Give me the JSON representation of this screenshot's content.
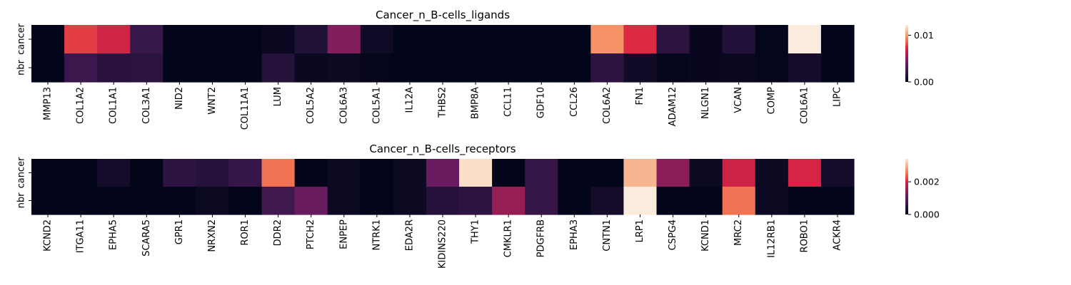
{
  "chart_data": [
    {
      "type": "heatmap",
      "title": "Cancer_n_B-cells_ligands",
      "rows": [
        "cancer",
        "nbr"
      ],
      "columns": [
        "MMP13",
        "COL1A2",
        "COL1A1",
        "COL3A1",
        "NID2",
        "WNT2",
        "COL11A1",
        "LUM",
        "COL5A2",
        "COL6A3",
        "COL5A1",
        "IL12A",
        "THBS2",
        "BMP8A",
        "CCL11",
        "GDF10",
        "CCL26",
        "COL6A2",
        "FN1",
        "ADAM12",
        "NLGN1",
        "VCAN",
        "COMP",
        "COL6A1",
        "LIPC"
      ],
      "values": [
        [
          0.0,
          0.0078,
          0.007,
          0.0022,
          0.0,
          0.0,
          0.0,
          0.0003,
          0.0012,
          0.0048,
          0.0005,
          0.0,
          0.0,
          0.0,
          0.0,
          0.0,
          0.0,
          0.0098,
          0.0074,
          0.0017,
          0.0002,
          0.0013,
          0.0001,
          0.0122,
          0.0
        ],
        [
          0.0,
          0.0023,
          0.0016,
          0.0017,
          0.0,
          0.0,
          0.0,
          0.0014,
          0.0003,
          0.0004,
          0.0001,
          0.0,
          0.0,
          0.0,
          0.0,
          0.0,
          0.0,
          0.0018,
          0.0006,
          0.0001,
          0.0002,
          0.0003,
          0.0001,
          0.0007,
          0.0
        ]
      ],
      "colorbar": {
        "min": 0.0,
        "max": 0.0122,
        "ticks": [
          0.0,
          0.01
        ],
        "tick_labels": [
          "0.00",
          "0.01"
        ]
      },
      "colormap": "rocket"
    },
    {
      "type": "heatmap",
      "title": "Cancer_n_B-cells_receptors",
      "rows": [
        "cancer",
        "nbr"
      ],
      "columns": [
        "KCND2",
        "ITGA11",
        "EPHA5",
        "SCARA5",
        "GPR1",
        "NRXN2",
        "ROR1",
        "DDR2",
        "PTCH2",
        "ENPEP",
        "NTRK1",
        "EDA2R",
        "KIDINS220",
        "THY1",
        "CMKLR1",
        "PDGFRB",
        "EPHA3",
        "CNTN1",
        "LRP1",
        "CSPG4",
        "KCND1",
        "MRC2",
        "IL12RB1",
        "ROBO1",
        "ACKR4"
      ],
      "values": [
        [
          0.0,
          0.0,
          0.0002,
          0.0,
          0.0005,
          0.0004,
          0.0006,
          0.0025,
          0.0,
          0.0001,
          0.0,
          0.0001,
          0.0011,
          0.0033,
          0.0,
          0.0006,
          0.0,
          0.0,
          0.003,
          0.0014,
          0.0001,
          0.0019,
          0.0001,
          0.002,
          0.0002
        ],
        [
          0.0,
          0.0,
          0.0,
          0.0,
          0.0,
          0.0001,
          0.0,
          0.0007,
          0.0011,
          0.0001,
          0.0,
          0.0001,
          0.0004,
          0.0005,
          0.0015,
          0.0006,
          0.0,
          0.0002,
          0.0034,
          0.0,
          0.0,
          0.0025,
          0.0001,
          0.0,
          0.0
        ]
      ],
      "colorbar": {
        "min": 0.0,
        "max": 0.0034,
        "ticks": [
          0.0,
          0.002
        ],
        "tick_labels": [
          "0.000",
          "0.002"
        ]
      },
      "colormap": "rocket"
    }
  ]
}
